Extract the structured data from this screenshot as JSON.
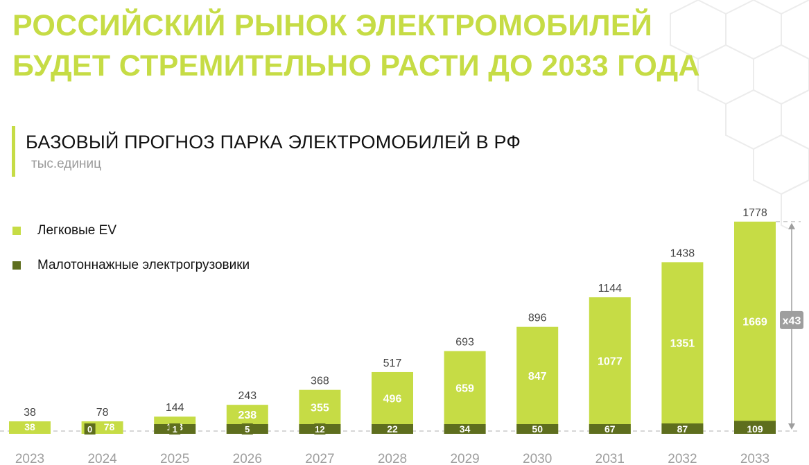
{
  "header": {
    "title_line1": "РОССИЙСКИЙ РЫНОК ЭЛЕКТРОМОБИЛЕЙ",
    "title_line2": "БУДЕТ СТРЕМИТЕЛЬНО РАСТИ ДО 2033 ГОДА"
  },
  "colors": {
    "accent": "#c6dc45",
    "ev": "#c6dc45",
    "truck": "#5e6e1e",
    "total_label": "#444444",
    "badge": "#9e9e9e"
  },
  "chart_data": {
    "type": "bar",
    "stacked": true,
    "title": "БАЗОВЫЙ ПРОГНОЗ ПАРКА ЭЛЕКТРОМОБИЛЕЙ В РФ",
    "ylabel": "тыс.единиц",
    "xlabel": "",
    "categories": [
      "2023",
      "2024",
      "2025",
      "2026",
      "2027",
      "2028",
      "2029",
      "2030",
      "2031",
      "2032",
      "2033"
    ],
    "series": [
      {
        "name": "Легковые EV",
        "values": [
          38,
          78,
          143,
          238,
          355,
          496,
          659,
          847,
          1077,
          1351,
          1669
        ]
      },
      {
        "name": "Малотоннажные электрогрузовики",
        "values": [
          null,
          0,
          1,
          5,
          12,
          22,
          34,
          50,
          67,
          87,
          109
        ]
      }
    ],
    "totals": [
      38,
      78,
      144,
      243,
      368,
      517,
      693,
      896,
      1144,
      1438,
      1778
    ],
    "growth_label": "x43",
    "ylim": [
      0,
      1800
    ],
    "grid": false,
    "legend_position": "top-left"
  }
}
